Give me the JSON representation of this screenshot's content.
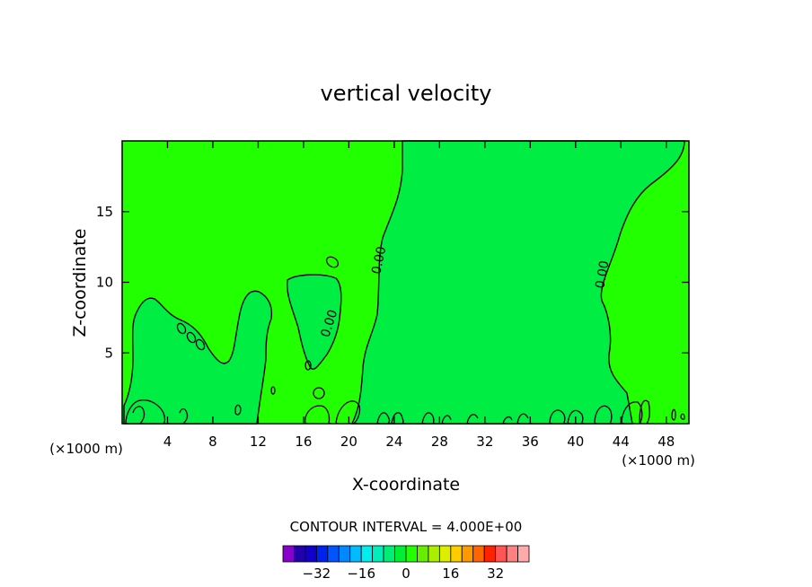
{
  "chart_data": {
    "type": "heatmap",
    "title": "vertical velocity",
    "xlabel": "X-coordinate",
    "ylabel": "Z-coordinate",
    "x_unit": "(×1000 m)",
    "x_unit_right": "(×1000 m)",
    "xlim": [
      0,
      50
    ],
    "ylim": [
      0,
      20
    ],
    "x_ticks": [
      4,
      8,
      12,
      16,
      20,
      24,
      28,
      32,
      36,
      40,
      44,
      48
    ],
    "y_ticks": [
      5,
      10,
      15
    ],
    "contour_labels": [
      {
        "text": "0.00",
        "x": 23.0,
        "z": 11.5,
        "angle": -78
      },
      {
        "text": "0.00",
        "x": 18.6,
        "z": 7.0,
        "angle": -72
      },
      {
        "text": "0.00",
        "x": 42.7,
        "z": 10.5,
        "angle": -80
      }
    ],
    "fill_regions": [
      {
        "value": 0,
        "color": "#22ff00",
        "region": "background, w slightly positive"
      },
      {
        "value": -2,
        "color": "#00ee44",
        "region": "negative lobes"
      }
    ],
    "contour_interval_label": "CONTOUR INTERVAL = 4.000E+00",
    "colorbar": {
      "colors": [
        "#8800cc",
        "#2200aa",
        "#1100cc",
        "#0022ee",
        "#0055ff",
        "#0088ff",
        "#00bbff",
        "#00eeee",
        "#00eebb",
        "#00ee77",
        "#00ee33",
        "#22ff00",
        "#66ee00",
        "#aaee00",
        "#ddee00",
        "#ffcc00",
        "#ff9900",
        "#ff6600",
        "#ff2200",
        "#ff5555",
        "#ff8080",
        "#ffaaaa"
      ],
      "tick_labels": [
        "-32",
        "-16",
        "0",
        "16",
        "32"
      ],
      "tick_values": [
        -32,
        -16,
        0,
        16,
        32
      ],
      "min": -44,
      "max": 44
    }
  }
}
